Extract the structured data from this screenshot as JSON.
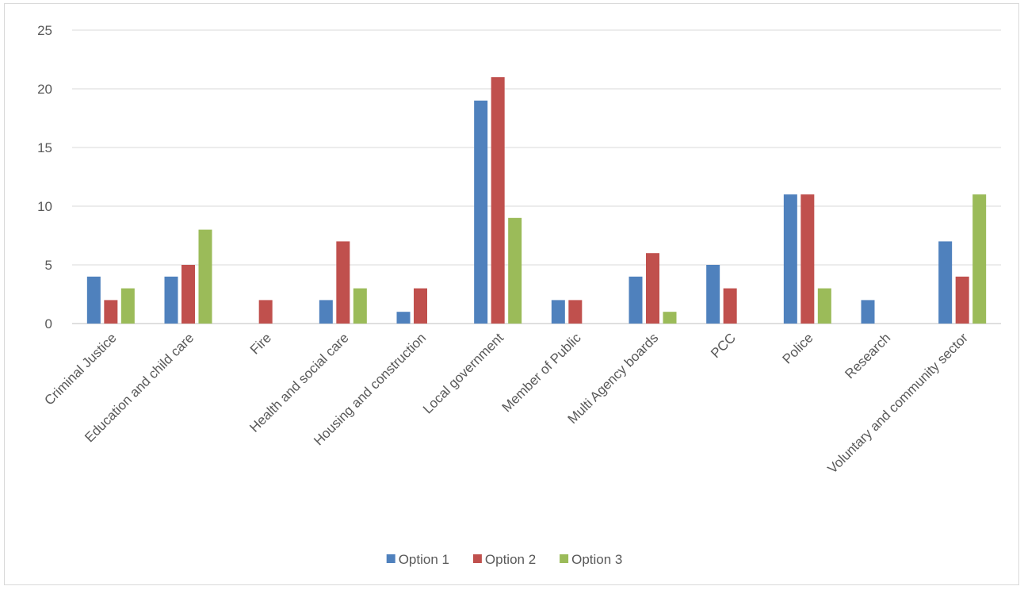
{
  "chart_data": {
    "type": "bar",
    "categories": [
      "Criminal Justice",
      "Education and child care",
      "Fire",
      "Health and social care",
      "Housing and construction",
      "Local government",
      "Member of Public",
      "Multi Agency boards",
      "PCC",
      "Police",
      "Research",
      "Voluntary and community sector"
    ],
    "series": [
      {
        "name": "Option 1",
        "color": "#4f81bd",
        "values": [
          4,
          4,
          0,
          2,
          1,
          19,
          2,
          4,
          5,
          11,
          2,
          7
        ]
      },
      {
        "name": "Option 2",
        "color": "#c0504d",
        "values": [
          2,
          5,
          2,
          7,
          3,
          21,
          2,
          6,
          3,
          11,
          0,
          4
        ]
      },
      {
        "name": "Option 3",
        "color": "#9bbb59",
        "values": [
          3,
          8,
          0,
          3,
          0,
          9,
          0,
          1,
          0,
          3,
          0,
          11
        ]
      }
    ],
    "ylim": [
      0,
      25
    ],
    "yticks": [
      0,
      5,
      10,
      15,
      20,
      25
    ],
    "grid": true,
    "legend_position": "bottom",
    "title": "",
    "xlabel": "",
    "ylabel": ""
  }
}
